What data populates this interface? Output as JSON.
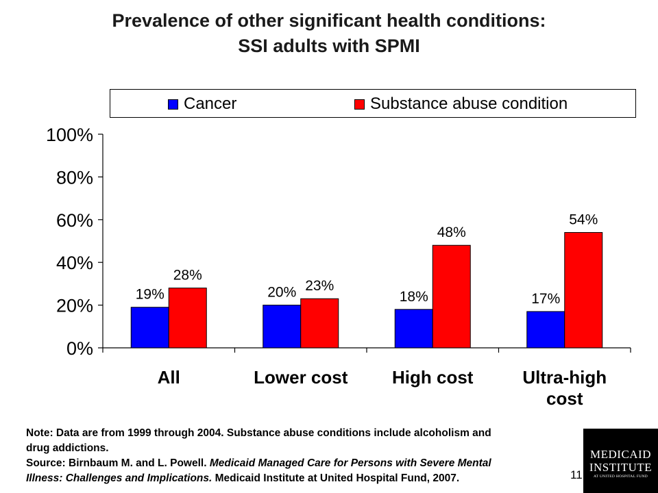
{
  "title_line1": "Prevalence of other significant health conditions:",
  "title_line2": "SSI adults with SPMI",
  "note_line1_a": "Note:  Data are from 1999 through 2004.  Substance abuse conditions include alcoholism and",
  "note_line2": "drug addictions.",
  "source_prefix": "Source:  Birnbaum M. and L. Powell.  ",
  "source_title_a": "Medicaid Managed Care for Persons with Severe Mental",
  "source_title_b": "Illness: Challenges and Implications.",
  "source_suffix": "  Medicaid Institute at United Hospital Fund, 2007.",
  "page_number": "11",
  "logo": {
    "line1": "MEDICAID",
    "line2": "INSTITUTE",
    "line3": "AT UNITED HOSPITAL FUND"
  },
  "colors": {
    "cancer": "#0000ff",
    "substance": "#ff0000"
  },
  "chart_data": {
    "type": "bar",
    "categories": [
      [
        "All"
      ],
      [
        "Lower cost"
      ],
      [
        "High cost"
      ],
      [
        "Ultra-high",
        "cost"
      ]
    ],
    "series": [
      {
        "name": "Cancer",
        "values": [
          19,
          20,
          18,
          17
        ],
        "labels": [
          "19%",
          "20%",
          "18%",
          "17%"
        ]
      },
      {
        "name": "Substance abuse condition",
        "values": [
          28,
          23,
          48,
          54
        ],
        "labels": [
          "28%",
          "23%",
          "48%",
          "54%"
        ]
      }
    ],
    "yticks": [
      "0%",
      "20%",
      "40%",
      "60%",
      "80%",
      "100%"
    ],
    "ylim": [
      0,
      100
    ],
    "legend": "top",
    "grid": false
  }
}
